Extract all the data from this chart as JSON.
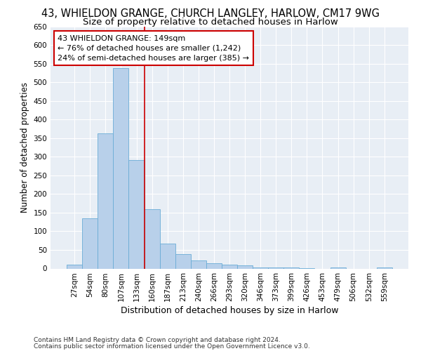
{
  "title_line1": "43, WHIELDON GRANGE, CHURCH LANGLEY, HARLOW, CM17 9WG",
  "title_line2": "Size of property relative to detached houses in Harlow",
  "xlabel": "Distribution of detached houses by size in Harlow",
  "ylabel": "Number of detached properties",
  "categories": [
    "27sqm",
    "54sqm",
    "80sqm",
    "107sqm",
    "133sqm",
    "160sqm",
    "187sqm",
    "213sqm",
    "240sqm",
    "266sqm",
    "293sqm",
    "320sqm",
    "346sqm",
    "373sqm",
    "399sqm",
    "426sqm",
    "453sqm",
    "479sqm",
    "506sqm",
    "532sqm",
    "559sqm"
  ],
  "values": [
    10,
    135,
    362,
    537,
    292,
    159,
    66,
    38,
    22,
    14,
    10,
    8,
    2,
    2,
    2,
    1,
    0,
    3,
    0,
    0,
    3
  ],
  "bar_color": "#b8d0ea",
  "bar_edge_color": "#6aacd6",
  "property_line_x": 4.5,
  "annotation_text_line1": "43 WHIELDON GRANGE: 149sqm",
  "annotation_text_line2": "← 76% of detached houses are smaller (1,242)",
  "annotation_text_line3": "24% of semi-detached houses are larger (385) →",
  "annotation_box_color": "#ffffff",
  "annotation_box_edge": "#cc0000",
  "vline_color": "#cc0000",
  "ylim": [
    0,
    650
  ],
  "yticks": [
    0,
    50,
    100,
    150,
    200,
    250,
    300,
    350,
    400,
    450,
    500,
    550,
    600,
    650
  ],
  "background_color": "#e8eef5",
  "footer_line1": "Contains HM Land Registry data © Crown copyright and database right 2024.",
  "footer_line2": "Contains public sector information licensed under the Open Government Licence v3.0.",
  "title_fontsize": 10.5,
  "subtitle_fontsize": 9.5,
  "xlabel_fontsize": 9,
  "ylabel_fontsize": 8.5,
  "tick_fontsize": 7.5,
  "annotation_fontsize": 8,
  "footer_fontsize": 6.5
}
